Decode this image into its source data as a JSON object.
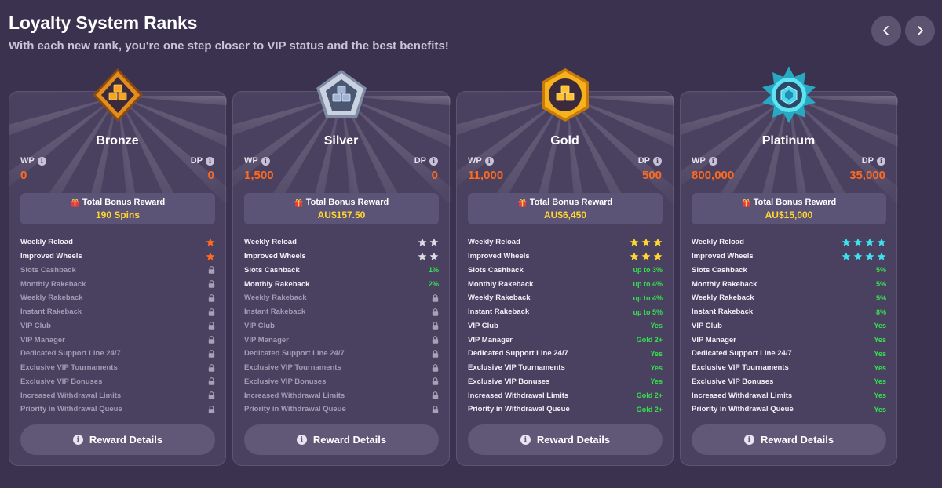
{
  "header": {
    "title": "Loyalty System Ranks",
    "subtitle": "With each new rank, you're one step closer to VIP status and the best benefits!"
  },
  "nav": {
    "prev_icon": "chevron-left-icon",
    "next_icon": "chevron-right-icon"
  },
  "labels": {
    "wp": "WP",
    "dp": "DP",
    "total_bonus": "Total Bonus Reward",
    "details_button": "Reward Details"
  },
  "colors": {
    "background": "#3b3250",
    "card": "#4a4160",
    "points": "#ff6a1f",
    "reward": "#ffd633",
    "positive": "#35e04f"
  },
  "ranks": [
    {
      "name": "Bronze",
      "wp": "0",
      "dp": "0",
      "reward": "190 Spins",
      "badge_icon": "bronze-rank-badge-icon",
      "star_color": "#ff6a1f",
      "features": [
        {
          "label": "Weekly Reload",
          "stars": 1
        },
        {
          "label": "Improved Wheels",
          "stars": 1
        },
        {
          "label": "Slots Cashback",
          "locked": true
        },
        {
          "label": "Monthly Rakeback",
          "locked": true
        },
        {
          "label": "Weekly Rakeback",
          "locked": true
        },
        {
          "label": "Instant Rakeback",
          "locked": true
        },
        {
          "label": "VIP Club",
          "locked": true
        },
        {
          "label": "VIP Manager",
          "locked": true
        },
        {
          "label": "Dedicated Support Line 24/7",
          "locked": true
        },
        {
          "label": "Exclusive VIP Tournaments",
          "locked": true
        },
        {
          "label": "Exclusive VIP Bonuses",
          "locked": true
        },
        {
          "label": "Increased Withdrawal Limits",
          "locked": true
        },
        {
          "label": "Priority in Withdrawal Queue",
          "locked": true
        }
      ]
    },
    {
      "name": "Silver",
      "wp": "1,500",
      "dp": "0",
      "reward": "AU$157.50",
      "badge_icon": "silver-rank-badge-icon",
      "star_color": "#dcdce6",
      "features": [
        {
          "label": "Weekly Reload",
          "stars": 2
        },
        {
          "label": "Improved Wheels",
          "stars": 2
        },
        {
          "label": "Slots Cashback",
          "value": "1%"
        },
        {
          "label": "Monthly Rakeback",
          "value": "2%"
        },
        {
          "label": "Weekly Rakeback",
          "locked": true
        },
        {
          "label": "Instant Rakeback",
          "locked": true
        },
        {
          "label": "VIP Club",
          "locked": true
        },
        {
          "label": "VIP Manager",
          "locked": true
        },
        {
          "label": "Dedicated Support Line 24/7",
          "locked": true
        },
        {
          "label": "Exclusive VIP Tournaments",
          "locked": true
        },
        {
          "label": "Exclusive VIP Bonuses",
          "locked": true
        },
        {
          "label": "Increased Withdrawal Limits",
          "locked": true
        },
        {
          "label": "Priority in Withdrawal Queue",
          "locked": true
        }
      ]
    },
    {
      "name": "Gold",
      "wp": "11,000",
      "dp": "500",
      "reward": "AU$6,450",
      "badge_icon": "gold-rank-badge-icon",
      "star_color": "#ffd633",
      "features": [
        {
          "label": "Weekly Reload",
          "stars": 3
        },
        {
          "label": "Improved Wheels",
          "stars": 3
        },
        {
          "label": "Slots Cashback",
          "value": "up to 3%"
        },
        {
          "label": "Monthly Rakeback",
          "value": "up to 4%"
        },
        {
          "label": "Weekly Rakeback",
          "value": "up to 4%"
        },
        {
          "label": "Instant Rakeback",
          "value": "up to 5%"
        },
        {
          "label": "VIP Club",
          "value": "Yes"
        },
        {
          "label": "VIP Manager",
          "value": "Gold 2+"
        },
        {
          "label": "Dedicated Support Line 24/7",
          "value": "Yes"
        },
        {
          "label": "Exclusive VIP Tournaments",
          "value": "Yes"
        },
        {
          "label": "Exclusive VIP Bonuses",
          "value": "Yes"
        },
        {
          "label": "Increased Withdrawal Limits",
          "value": "Gold 2+"
        },
        {
          "label": "Priority in Withdrawal Queue",
          "value": "Gold 2+"
        }
      ]
    },
    {
      "name": "Platinum",
      "wp": "800,000",
      "dp": "35,000",
      "reward": "AU$15,000",
      "badge_icon": "platinum-rank-badge-icon",
      "star_color": "#3fe0f0",
      "features": [
        {
          "label": "Weekly Reload",
          "stars": 4
        },
        {
          "label": "Improved Wheels",
          "stars": 4
        },
        {
          "label": "Slots Cashback",
          "value": "5%"
        },
        {
          "label": "Monthly Rakeback",
          "value": "5%"
        },
        {
          "label": "Weekly Rakeback",
          "value": "5%"
        },
        {
          "label": "Instant Rakeback",
          "value": "8%"
        },
        {
          "label": "VIP Club",
          "value": "Yes"
        },
        {
          "label": "VIP Manager",
          "value": "Yes"
        },
        {
          "label": "Dedicated Support Line 24/7",
          "value": "Yes"
        },
        {
          "label": "Exclusive VIP Tournaments",
          "value": "Yes"
        },
        {
          "label": "Exclusive VIP Bonuses",
          "value": "Yes"
        },
        {
          "label": "Increased Withdrawal Limits",
          "value": "Yes"
        },
        {
          "label": "Priority in Withdrawal Queue",
          "value": "Yes"
        }
      ]
    }
  ]
}
